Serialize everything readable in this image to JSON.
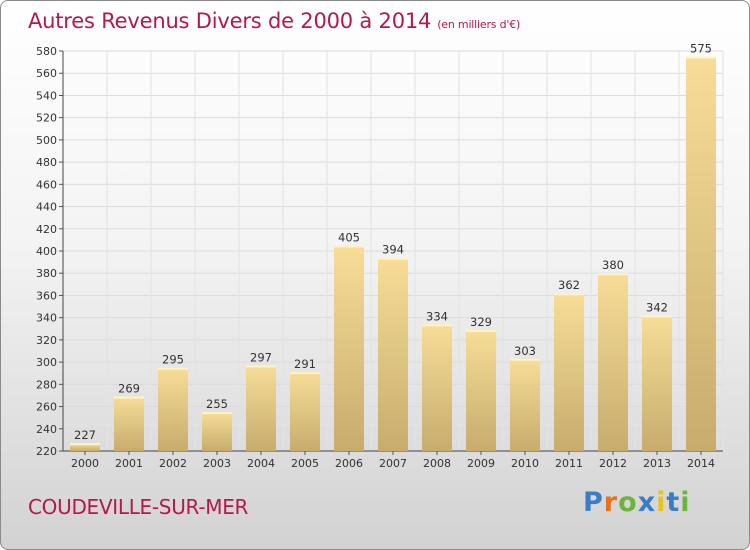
{
  "title": "Autres Revenus Divers de 2000 à 2014",
  "unit_note": "(en milliers d'€)",
  "place": "COUDEVILLE-SUR-MER",
  "logo": {
    "text": "Proxiti",
    "colors": [
      "#3b7dc4",
      "#e8701f",
      "#6cb33f",
      "#3b7dc4",
      "#e8c21f",
      "#3b7dc4",
      "#6cb33f"
    ]
  },
  "colors": {
    "title": "#b5174f",
    "bar_light": "#f7dd97",
    "bar_dark": "#c7ac6e"
  },
  "chart_data": {
    "type": "bar",
    "categories": [
      "2000",
      "2001",
      "2002",
      "2003",
      "2004",
      "2005",
      "2006",
      "2007",
      "2008",
      "2009",
      "2010",
      "2011",
      "2012",
      "2013",
      "2014"
    ],
    "values": [
      227,
      269,
      295,
      255,
      297,
      291,
      405,
      394,
      334,
      329,
      303,
      362,
      380,
      342,
      575
    ],
    "ylim": [
      220,
      580
    ],
    "yticks": [
      220,
      240,
      260,
      280,
      300,
      320,
      340,
      360,
      380,
      400,
      420,
      440,
      460,
      480,
      500,
      520,
      540,
      560,
      580
    ],
    "grid": true
  }
}
